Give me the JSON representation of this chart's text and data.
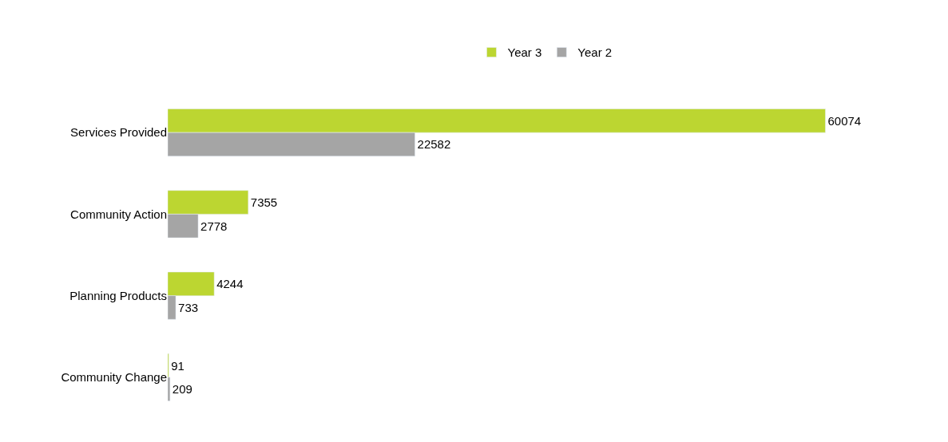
{
  "chart_data": {
    "type": "bar",
    "orientation": "horizontal",
    "categories": [
      "Services Provided",
      "Community Action",
      "Planning Products",
      "Community Change"
    ],
    "series": [
      {
        "name": "Year 3",
        "color": "#bcd631",
        "values": [
          60074,
          7355,
          4244,
          91
        ]
      },
      {
        "name": "Year 2",
        "color": "#a5a5a5",
        "values": [
          22582,
          2778,
          733,
          209
        ]
      }
    ],
    "data_labels": true,
    "legend": "top"
  }
}
